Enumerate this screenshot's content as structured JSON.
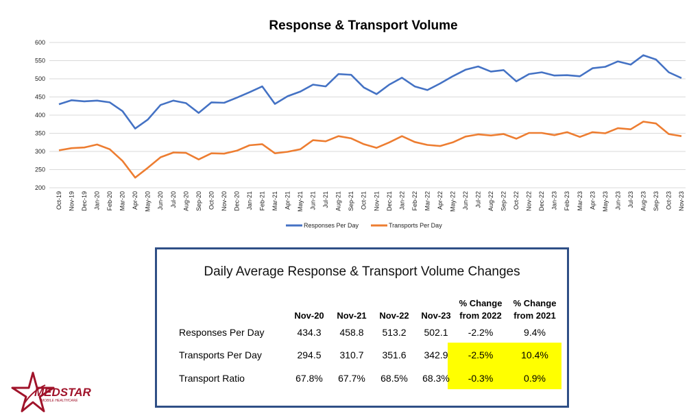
{
  "chart_data": {
    "type": "line",
    "title": "Response & Transport Volume",
    "xlabel": "",
    "ylabel": "",
    "ylim": [
      200,
      600
    ],
    "yticks": [
      200,
      250,
      300,
      350,
      400,
      450,
      500,
      550,
      600
    ],
    "grid": true,
    "legend": "bottom",
    "categories": [
      "Oct-19",
      "Nov-19",
      "Dec-19",
      "Jan-20",
      "Feb-20",
      "Mar-20",
      "Apr-20",
      "May-20",
      "Jun-20",
      "Jul-20",
      "Aug-20",
      "Sep-20",
      "Oct-20",
      "Nov-20",
      "Dec-20",
      "Jan-21",
      "Feb-21",
      "Mar-21",
      "Apr-21",
      "May-21",
      "Jun-21",
      "Jul-21",
      "Aug-21",
      "Sep-21",
      "Oct-21",
      "Nov-21",
      "Dec-21",
      "Jan-22",
      "Feb-22",
      "Mar-22",
      "Apr-22",
      "May-22",
      "Jun-22",
      "Jul-22",
      "Aug-22",
      "Sep-22",
      "Oct-22",
      "Nov-22",
      "Dec-22",
      "Jan-23",
      "Feb-23",
      "Mar-23",
      "Apr-23",
      "May-23",
      "Jun-23",
      "Jul-23",
      "Aug-23",
      "Sep-23",
      "Oct-23",
      "Nov-23"
    ],
    "series": [
      {
        "name": "Responses Per Day",
        "color": "#4472c4",
        "values": [
          430,
          441,
          438,
          440,
          435,
          411,
          363,
          388,
          428,
          440,
          433,
          406,
          435,
          434,
          448,
          463,
          479,
          431,
          452,
          465,
          484,
          479,
          513,
          511,
          476,
          458,
          484,
          503,
          479,
          469,
          487,
          507,
          525,
          534,
          520,
          524,
          493,
          513,
          518,
          509,
          510,
          507,
          529,
          533,
          548,
          539,
          565,
          553,
          518,
          502
        ]
      },
      {
        "name": "Transports Per Day",
        "color": "#ed7d31",
        "values": [
          303,
          309,
          311,
          319,
          306,
          274,
          228,
          255,
          284,
          297,
          296,
          278,
          295,
          294,
          302,
          317,
          320,
          295,
          299,
          306,
          331,
          328,
          342,
          336,
          320,
          310,
          325,
          342,
          326,
          318,
          315,
          325,
          341,
          347,
          344,
          348,
          335,
          351,
          351,
          345,
          353,
          340,
          353,
          350,
          364,
          361,
          382,
          377,
          348,
          342
        ]
      }
    ]
  },
  "summary": {
    "title": "Daily Average Response & Transport Volume Changes",
    "columns": [
      "Nov-20",
      "Nov-21",
      "Nov-22",
      "Nov-23"
    ],
    "change_headers": [
      {
        "line1": "% Change",
        "line2": "from 2022"
      },
      {
        "line1": "% Change",
        "line2": "from 2021"
      }
    ],
    "rows": [
      {
        "label": "Responses Per Day",
        "values": [
          "434.3",
          "458.8",
          "513.2",
          "502.1"
        ],
        "changes": [
          "-2.2%",
          "9.4%"
        ]
      },
      {
        "label": "Transports Per Day",
        "values": [
          "294.5",
          "310.7",
          "351.6",
          "342.9"
        ],
        "changes": [
          "-2.5%",
          "10.4%"
        ]
      },
      {
        "label": "Transport Ratio",
        "values": [
          "67.8%",
          "67.7%",
          "68.5%",
          "68.3%"
        ],
        "changes": [
          "-0.3%",
          "0.9%"
        ]
      }
    ],
    "highlight_color": "#ffff00"
  },
  "logo": {
    "name": "MEDSTAR",
    "tagline": "MOBILE HEALTHCARE"
  }
}
